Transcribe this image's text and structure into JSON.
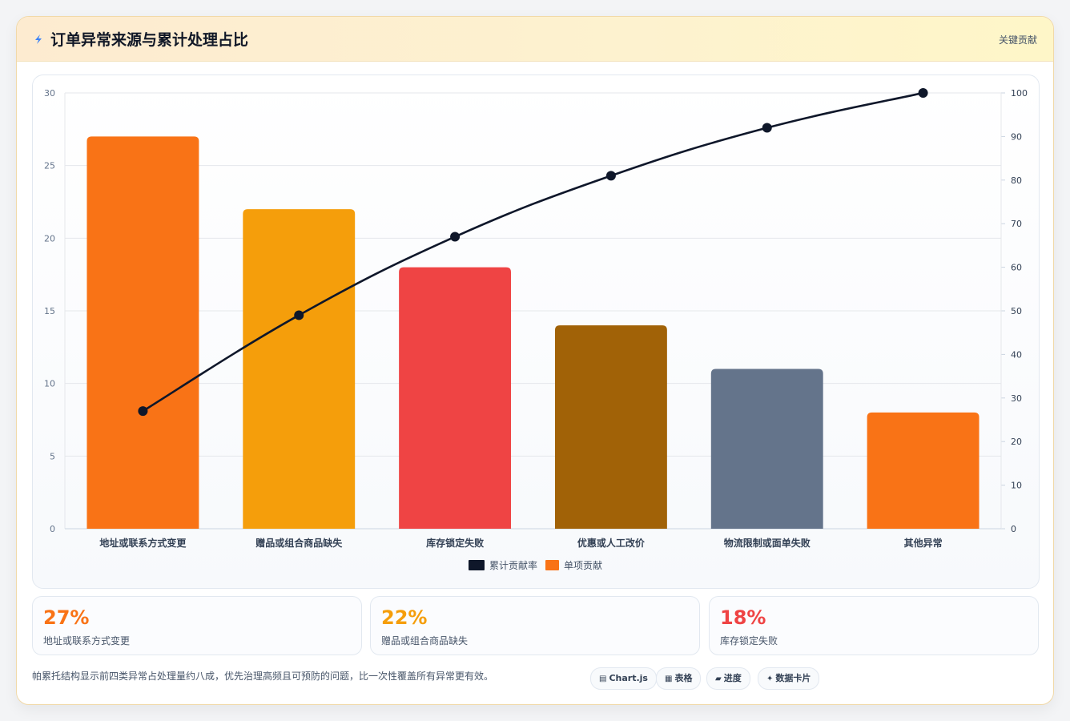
{
  "header": {
    "title": "订单异常来源与累计处理占比",
    "tag": "关键贡献",
    "icon": "lightning-icon"
  },
  "chart_data": {
    "type": "bar",
    "categories": [
      "地址或联系方式变更",
      "赠品或组合商品缺失",
      "库存锁定失败",
      "优惠或人工改价",
      "物流限制或面单失败",
      "其他异常"
    ],
    "series": [
      {
        "name": "单项贡献",
        "kind": "bar",
        "axis": "left",
        "values": [
          27,
          22,
          18,
          14,
          11,
          8
        ],
        "colors": [
          "#f97316",
          "#f59e0b",
          "#ef4444",
          "#a16207",
          "#64748b",
          "#f97316"
        ]
      },
      {
        "name": "累计贡献率",
        "kind": "line",
        "axis": "right",
        "values": [
          27,
          49,
          67,
          81,
          92,
          100
        ],
        "color": "#0f172a"
      }
    ],
    "ylim_left": [
      0,
      30
    ],
    "yticks_left": [
      0,
      5,
      10,
      15,
      20,
      25,
      30
    ],
    "ylim_right": [
      0,
      100
    ],
    "yticks_right": [
      0,
      10,
      20,
      30,
      40,
      50,
      60,
      70,
      80,
      90,
      100
    ],
    "grid": true,
    "legend": "bottom-center"
  },
  "stats": [
    {
      "value": "27%",
      "label": "地址或联系方式变更",
      "color": "#f97316"
    },
    {
      "value": "22%",
      "label": "赠品或组合商品缺失",
      "color": "#f59e0b"
    },
    {
      "value": "18%",
      "label": "库存锁定失败",
      "color": "#ef4444"
    }
  ],
  "note": "帕累托结构显示前四类异常占处理量约八成，优先治理高频且可预防的问题，比一次性覆盖所有异常更有效。",
  "chips": [
    {
      "icon": "chart-icon",
      "glyph": "▤",
      "label": "Chart.js"
    },
    {
      "icon": "table-icon",
      "glyph": "▦",
      "label": "表格"
    },
    {
      "icon": "progress-icon",
      "glyph": "▰",
      "label": "进度"
    },
    {
      "icon": "sparkle-icon",
      "glyph": "✦",
      "label": "数据卡片"
    }
  ]
}
